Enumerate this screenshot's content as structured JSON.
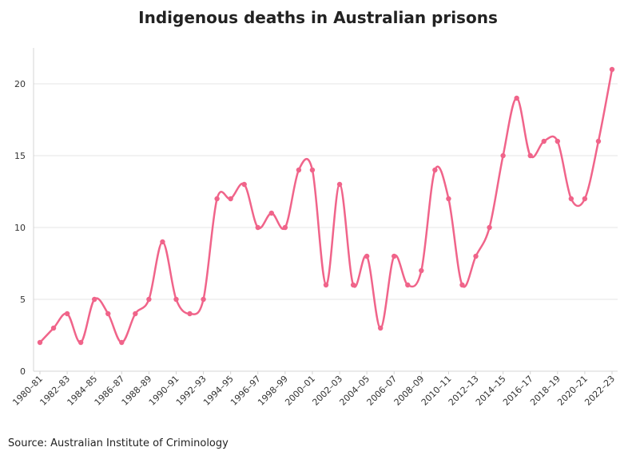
{
  "chart_data": {
    "type": "line",
    "title": "Indigenous deaths in Australian prisons",
    "subtitle": "",
    "xlabel": "",
    "ylabel": "",
    "source": "Source: Australian Institute of Criminology",
    "categories": [
      "1980–81",
      "1981–82",
      "1982–83",
      "1983–84",
      "1984–85",
      "1985–86",
      "1986–87",
      "1987–88",
      "1988–89",
      "1989–90",
      "1990–91",
      "1991–92",
      "1992–93",
      "1993–94",
      "1994–95",
      "1995–96",
      "1996–97",
      "1997–98",
      "1998–99",
      "1999–00",
      "2000–01",
      "2001–02",
      "2002–03",
      "2003–04",
      "2004–05",
      "2005–06",
      "2006–07",
      "2007–08",
      "2008–09",
      "2009–10",
      "2010–11",
      "2011–12",
      "2012–13",
      "2013–14",
      "2014–15",
      "2015–16",
      "2016–17",
      "2017–18",
      "2018–19",
      "2019–20",
      "2020–21",
      "2021–22",
      "2022–23"
    ],
    "shown_tick_labels": [
      "1980–81",
      "1982–83",
      "1984–85",
      "1986–87",
      "1988–89",
      "1990–91",
      "1992–93",
      "1994–95",
      "1996–97",
      "1998–99",
      "2000–01",
      "2002–03",
      "2004–05",
      "2006–07",
      "2008–09",
      "2010–11",
      "2012–13",
      "2014–15",
      "2016–17",
      "2018–19",
      "2020–21",
      "2022–23"
    ],
    "series": [
      {
        "values": [
          2,
          3,
          4,
          2,
          5,
          4,
          2,
          4,
          5,
          9,
          5,
          4,
          5,
          12,
          12,
          13,
          10,
          11,
          10,
          14,
          14,
          6,
          13,
          6,
          8,
          3,
          8,
          6,
          7,
          14,
          12,
          6,
          8,
          10,
          15,
          19,
          15,
          16,
          16,
          12,
          12,
          16,
          21
        ],
        "color": "#f0648a"
      }
    ],
    "yticks": [
      0,
      5,
      10,
      15,
      20
    ],
    "ylim": [
      0,
      22.5
    ],
    "grid": "horizontal",
    "legend": "none"
  }
}
